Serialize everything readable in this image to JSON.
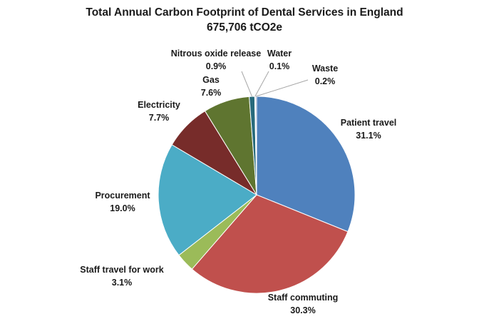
{
  "chart_data": {
    "type": "pie",
    "title": "Total Annual Carbon Footprint of Dental Services in England",
    "subtitle": "675,706 tCO2e",
    "slices": [
      {
        "name": "Patient travel",
        "value": 31.1,
        "label": "31.1%",
        "color": "#4F81BD"
      },
      {
        "name": "Staff commuting",
        "value": 30.3,
        "label": "30.3%",
        "color": "#C0504D"
      },
      {
        "name": "Staff travel for work",
        "value": 3.1,
        "label": "3.1%",
        "color": "#9BBB59"
      },
      {
        "name": "Procurement",
        "value": 19.0,
        "label": "19.0%",
        "color": "#4BACC6"
      },
      {
        "name": "Electricity",
        "value": 7.7,
        "label": "7.7%",
        "color": "#772C2A"
      },
      {
        "name": "Gas",
        "value": 7.6,
        "label": "7.6%",
        "color": "#5F7530"
      },
      {
        "name": "Nitrous oxide release",
        "value": 0.9,
        "label": "0.9%",
        "color": "#276A7C"
      },
      {
        "name": "Water",
        "value": 0.1,
        "label": "0.1%",
        "color": "#2C4D75"
      },
      {
        "name": "Waste",
        "value": 0.2,
        "label": "0.2%",
        "color": "#8C9DC9"
      }
    ]
  }
}
